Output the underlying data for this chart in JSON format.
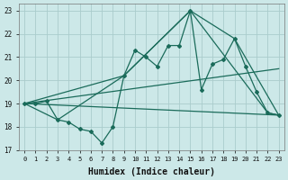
{
  "xlabel": "Humidex (Indice chaleur)",
  "background_color": "#cce8e8",
  "grid_color": "#aacccc",
  "line_color": "#1a6b5a",
  "xlim": [
    -0.5,
    23.5
  ],
  "ylim": [
    17,
    23.3
  ],
  "yticks": [
    17,
    18,
    19,
    20,
    21,
    22,
    23
  ],
  "xticks": [
    0,
    1,
    2,
    3,
    4,
    5,
    6,
    7,
    8,
    9,
    10,
    11,
    12,
    13,
    14,
    15,
    16,
    17,
    18,
    19,
    20,
    21,
    22,
    23
  ],
  "series_main_x": [
    0,
    1,
    2,
    3,
    4,
    5,
    6,
    7,
    8,
    9,
    10,
    11,
    12,
    13,
    14,
    15,
    16,
    17,
    18,
    19,
    20,
    21,
    22,
    23
  ],
  "series_main_y": [
    19.0,
    19.0,
    19.1,
    18.3,
    18.2,
    17.9,
    17.8,
    17.3,
    18.0,
    20.2,
    21.3,
    21.0,
    20.6,
    21.5,
    21.5,
    23.0,
    19.6,
    20.7,
    20.9,
    21.8,
    20.6,
    19.5,
    18.6,
    18.5
  ],
  "trend_upper_x": [
    0,
    9,
    15,
    19,
    23
  ],
  "trend_upper_y": [
    19.0,
    20.2,
    23.0,
    21.8,
    18.5
  ],
  "trend_lower_x": [
    0,
    3,
    9,
    15,
    22,
    23
  ],
  "trend_lower_y": [
    19.0,
    18.3,
    20.2,
    23.0,
    18.6,
    18.5
  ]
}
